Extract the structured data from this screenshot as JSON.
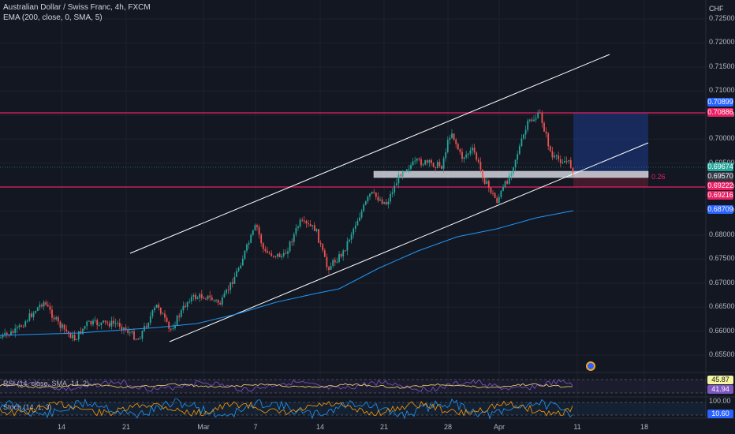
{
  "header": {
    "symbol_title": "Australian Dollar / Swiss Franc, 4h, FXCM",
    "indicator_ema": "EMA (200, close, 0, SMA, 5)",
    "currency": "CHF"
  },
  "price_axis": {
    "labels": [
      "0.72500",
      "0.72000",
      "0.71500",
      "0.71000",
      "0.70500",
      "0.70000",
      "0.69500",
      "0.69000",
      "0.68500",
      "0.68000",
      "0.67500",
      "0.67000",
      "0.66500",
      "0.66000",
      "0.65500"
    ]
  },
  "price_tags": [
    {
      "value": "0.70899",
      "color": "#2962ff"
    },
    {
      "value": "0.70886",
      "color": "#e91e63"
    },
    {
      "value": "0.69674",
      "color": "#26a69a"
    },
    {
      "value": "0.69570",
      "color": "#363a45"
    },
    {
      "value": "0.69222",
      "color": "#e91e63"
    },
    {
      "value": "0.69216",
      "color": "#e91e63"
    },
    {
      "value": "0.68709",
      "color": "#2962ff"
    }
  ],
  "fib_label": "0.26",
  "time_axis": {
    "labels": [
      "14",
      "21",
      "Mar",
      "7",
      "14",
      "21",
      "28",
      "Apr",
      "11",
      "18"
    ]
  },
  "rsi": {
    "legend": "RSI (14, close, SMA, 14, 2)",
    "value1": "45.87",
    "value2": "41.94",
    "value1_color": "#f5f5a0",
    "value2_color": "#7e57c2"
  },
  "stoch": {
    "legend": "Stoch (14, 1, 3)",
    "scale_label": "100.00",
    "value": "10.60",
    "value_color": "#2962ff"
  },
  "colors": {
    "up": "#26a69a",
    "down": "#ef5350",
    "ema": "#2196f3",
    "resistance": "#e91e63",
    "channel": "#ffffff"
  }
}
